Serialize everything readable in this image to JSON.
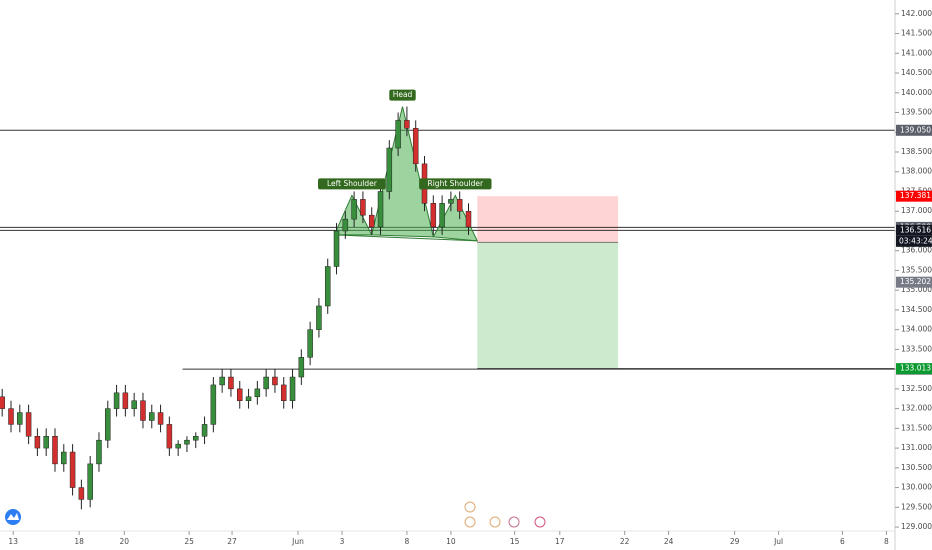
{
  "chart_data": {
    "type": "candlestick",
    "x": [
      -0.5,
      -0.1,
      0.3,
      0.7,
      1.1,
      1.5,
      1.9,
      2.3,
      2.7,
      3.1,
      3.5,
      3.9,
      4.3,
      4.7,
      5.1,
      5.5,
      5.9,
      6.3,
      6.7,
      7.1,
      7.5,
      7.9,
      8.3,
      8.7,
      9.1,
      9.5,
      9.9,
      10.3,
      10.7,
      11.1,
      11.5,
      11.9,
      12.3,
      12.7,
      13.1,
      13.5,
      13.9,
      14.3,
      14.7,
      15.1,
      15.5,
      15.9,
      16.3,
      16.7,
      17.1,
      17.5,
      17.9,
      18.3,
      18.7,
      19.1,
      19.5,
      19.9,
      20.3,
      20.7
    ],
    "open": [
      132.3,
      132.0,
      131.6,
      131.9,
      131.3,
      131.0,
      131.3,
      130.6,
      130.9,
      130.0,
      129.7,
      130.6,
      131.2,
      132.0,
      132.4,
      132.0,
      132.2,
      131.7,
      131.9,
      131.6,
      131.0,
      131.1,
      131.2,
      131.3,
      131.6,
      132.6,
      132.8,
      132.5,
      132.2,
      132.3,
      132.5,
      132.8,
      132.6,
      132.2,
      132.8,
      133.3,
      134.0,
      134.6,
      135.6,
      136.5,
      136.8,
      137.3,
      136.9,
      136.6,
      137.5,
      138.6,
      139.3,
      139.1,
      138.2,
      137.2,
      136.6,
      137.2,
      137.3,
      137.0
    ],
    "high": [
      132.5,
      132.2,
      132.1,
      132.1,
      131.5,
      131.5,
      131.5,
      131.1,
      131.1,
      130.2,
      130.8,
      131.4,
      132.2,
      132.6,
      132.6,
      132.4,
      132.4,
      132.1,
      132.1,
      131.8,
      131.2,
      131.3,
      131.4,
      131.8,
      132.8,
      133.0,
      133.0,
      132.7,
      132.5,
      132.7,
      133.0,
      133.0,
      132.8,
      133.0,
      133.5,
      134.2,
      134.8,
      135.8,
      136.7,
      137.0,
      137.5,
      137.5,
      137.1,
      137.7,
      138.8,
      139.5,
      139.65,
      139.3,
      138.4,
      137.4,
      137.4,
      137.5,
      137.5,
      137.2
    ],
    "low": [
      131.8,
      131.4,
      131.4,
      131.1,
      130.8,
      130.8,
      130.4,
      130.4,
      129.8,
      129.45,
      129.5,
      130.4,
      131.0,
      131.8,
      131.8,
      131.8,
      131.5,
      131.5,
      131.4,
      130.8,
      130.8,
      130.9,
      131.0,
      131.1,
      131.4,
      132.4,
      132.3,
      132.0,
      132.0,
      132.1,
      132.3,
      132.4,
      132.0,
      132.0,
      132.6,
      133.1,
      133.8,
      134.4,
      135.4,
      136.3,
      136.6,
      136.7,
      136.4,
      136.4,
      137.3,
      138.4,
      138.9,
      138.0,
      137.0,
      136.4,
      136.4,
      137.0,
      136.8,
      136.4
    ],
    "close": [
      132.0,
      131.6,
      131.9,
      131.3,
      131.0,
      131.3,
      130.6,
      130.9,
      130.0,
      129.7,
      130.6,
      131.2,
      132.0,
      132.4,
      132.0,
      132.2,
      131.7,
      131.9,
      131.6,
      131.0,
      131.1,
      131.2,
      131.3,
      131.6,
      132.6,
      132.8,
      132.5,
      132.2,
      132.3,
      132.5,
      132.8,
      132.6,
      132.2,
      132.8,
      133.3,
      134.0,
      134.6,
      135.6,
      136.5,
      136.8,
      137.3,
      136.9,
      136.6,
      137.5,
      138.6,
      139.3,
      139.1,
      138.2,
      137.2,
      136.6,
      137.2,
      137.3,
      137.0,
      136.6
    ],
    "up_color": "#388e3c",
    "down_color": "#d32f2f",
    "xlim": [
      -0.6,
      40
    ],
    "xticks": [
      {
        "value": 0,
        "label": "13"
      },
      {
        "value": 3,
        "label": "18"
      },
      {
        "value": 5.05,
        "label": "20"
      },
      {
        "value": 8,
        "label": "25"
      },
      {
        "value": 9.95,
        "label": "27"
      },
      {
        "value": 12.95,
        "label": "Jun"
      },
      {
        "value": 14.95,
        "label": "3"
      },
      {
        "value": 17.9,
        "label": "8"
      },
      {
        "value": 19.9,
        "label": "10"
      },
      {
        "value": 22.8,
        "label": "15"
      },
      {
        "value": 24.85,
        "label": "17"
      },
      {
        "value": 27.8,
        "label": "22"
      },
      {
        "value": 29.8,
        "label": "24"
      },
      {
        "value": 32.8,
        "label": "29"
      },
      {
        "value": 34.8,
        "label": "Jul"
      },
      {
        "value": 37.7,
        "label": "6"
      },
      {
        "value": 39.7,
        "label": "8"
      }
    ],
    "ylim": [
      128.9,
      142.35
    ],
    "yticks": [
      {
        "value": 142,
        "label": "142.000"
      },
      {
        "value": 141.5,
        "label": "141.500"
      },
      {
        "value": 141,
        "label": "141.000"
      },
      {
        "value": 140.5,
        "label": "140.500"
      },
      {
        "value": 140,
        "label": "140.000"
      },
      {
        "value": 139.5,
        "label": "139.500"
      },
      {
        "value": 139,
        "label": "139.000"
      },
      {
        "value": 138.5,
        "label": "138.500"
      },
      {
        "value": 138,
        "label": "138.000"
      },
      {
        "value": 137.5,
        "label": "137.500"
      },
      {
        "value": 137,
        "label": "137.000"
      },
      {
        "value": 136.5,
        "label": "136.500"
      },
      {
        "value": 136,
        "label": "136.000"
      },
      {
        "value": 135.5,
        "label": "135.500"
      },
      {
        "value": 135,
        "label": "135.000"
      },
      {
        "value": 134.5,
        "label": "134.500"
      },
      {
        "value": 134,
        "label": "134.000"
      },
      {
        "value": 133.5,
        "label": "133.500"
      },
      {
        "value": 133,
        "label": "133.000"
      },
      {
        "value": 132.5,
        "label": "132.500"
      },
      {
        "value": 132,
        "label": "132.000"
      },
      {
        "value": 131.5,
        "label": "131.500"
      },
      {
        "value": 131,
        "label": "131.000"
      },
      {
        "value": 130.5,
        "label": "130.500"
      },
      {
        "value": 130,
        "label": "130.000"
      },
      {
        "value": 129.5,
        "label": "129.500"
      },
      {
        "value": 129,
        "label": "129.000"
      }
    ],
    "levels": [
      {
        "value": 139.05,
        "from": -0.6,
        "label": "139.050",
        "color": "#5d606b"
      },
      {
        "value": 136.59,
        "from": -0.6,
        "label": "136.590",
        "color": "#5d606b"
      },
      {
        "value": 136.516,
        "from": -0.6,
        "label": "136.516",
        "color": "#131722"
      },
      {
        "value": 133.0,
        "from": 7.7,
        "label": "133.000",
        "color": "#5d606b"
      }
    ],
    "position": {
      "from": 21.1,
      "to": 27.5,
      "stop": 137.381,
      "entry": 136.21,
      "target": 133.013,
      "stop_label": "137.381",
      "target_label": "133.013",
      "entry_badge_value": 135.202,
      "entry_badge_label": "135.202",
      "stop_color": "#ff0000",
      "target_color": "#0b9a2f"
    },
    "countdown": "03:43:24",
    "pattern": {
      "x": [
        14.6,
        15.4,
        16.3,
        17.7,
        19.1,
        20.1,
        21.1
      ],
      "y": [
        136.4,
        137.4,
        136.4,
        139.65,
        136.35,
        137.4,
        136.25
      ],
      "labels": [
        {
          "text": "Left Shoulder",
          "point": 1
        },
        {
          "text": "Head",
          "point": 3
        },
        {
          "text": "Right Shoulder",
          "point": 5
        }
      ],
      "color": "#4caf50"
    }
  }
}
